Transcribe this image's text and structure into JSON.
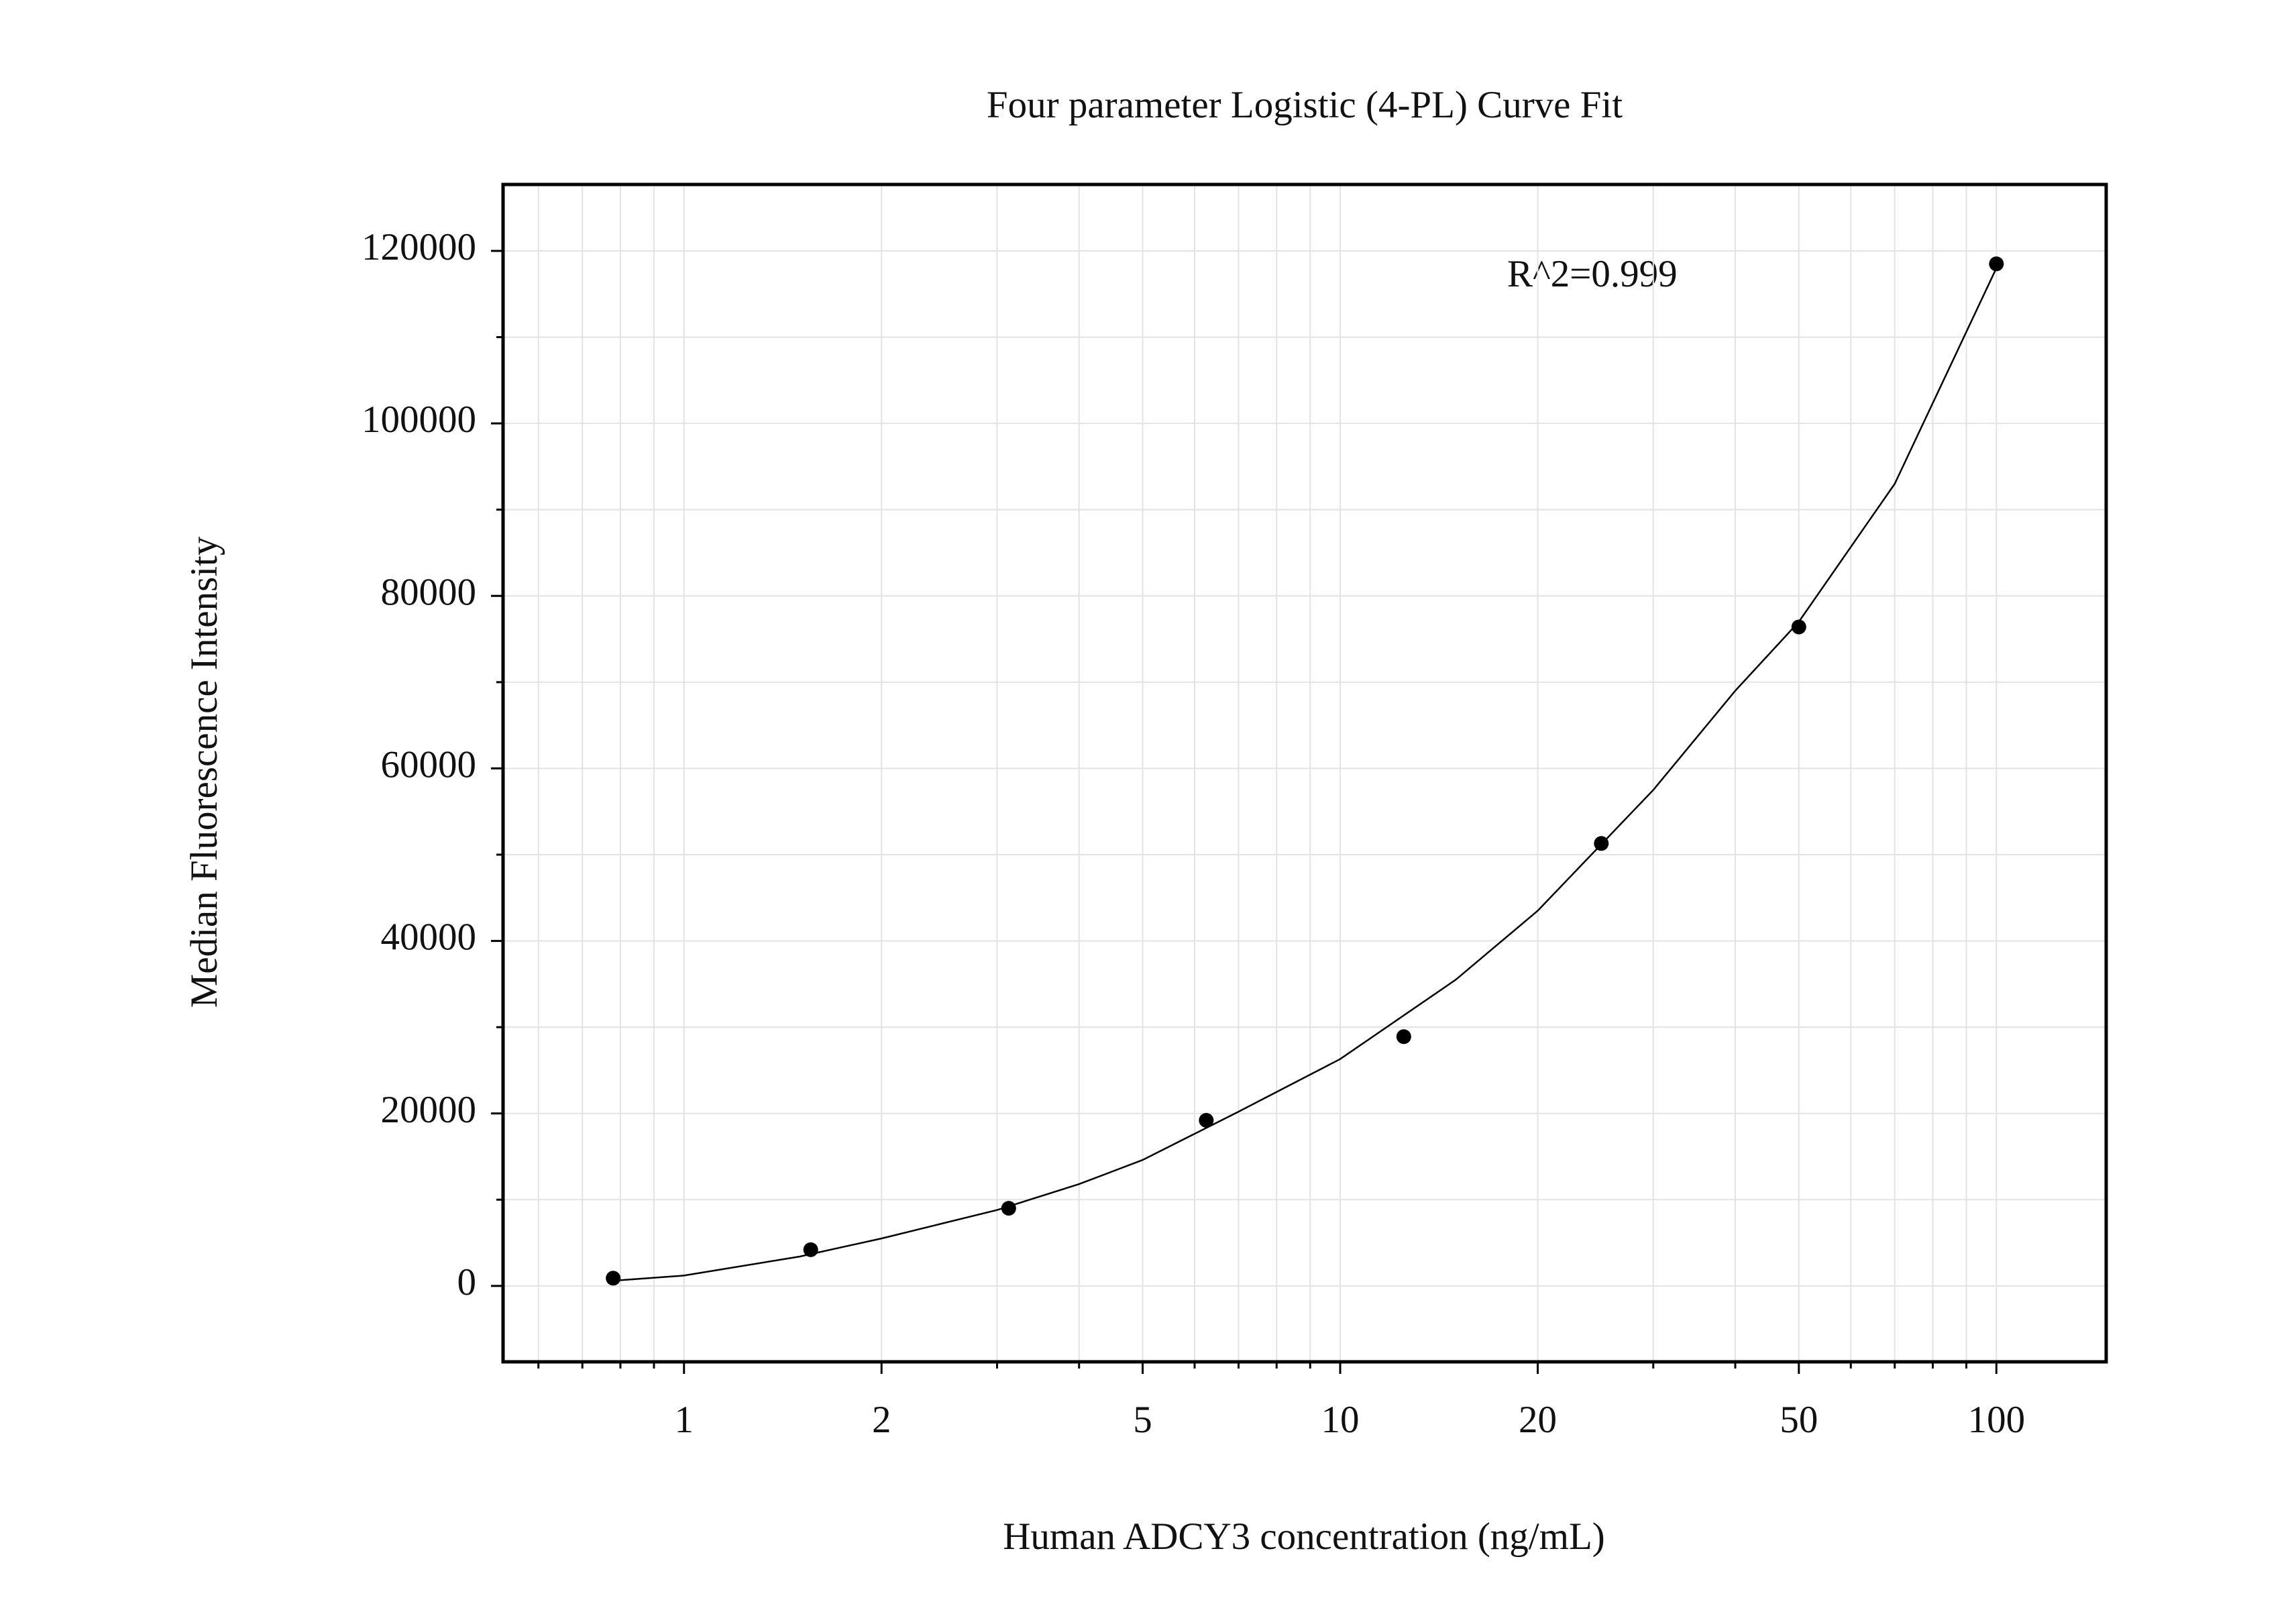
{
  "chart_data": {
    "type": "scatter",
    "title": "Four parameter Logistic (4-PL) Curve Fit",
    "x_label": "Human ADCY3 concentration (ng/mL)",
    "y_label": "Median Fluorescence Intensity",
    "annotation": "R^2=0.999",
    "x_scale": "log",
    "series": [
      {
        "color": "#000000",
        "x": [
          0.78,
          1.56,
          3.125,
          6.25,
          12.5,
          25,
          50,
          100
        ],
        "values": [
          900,
          4200,
          9000,
          19200,
          28900,
          51300,
          76400,
          118500
        ]
      }
    ],
    "fit": {
      "color": "#000000",
      "x": [
        0.78,
        1,
        1.5,
        2,
        3,
        4,
        5,
        7,
        10,
        15,
        20,
        30,
        40,
        50,
        70,
        100
      ],
      "values": [
        600,
        1200,
        3400,
        5500,
        8800,
        11800,
        14600,
        20200,
        26300,
        35500,
        43500,
        57500,
        69000,
        77000,
        93000,
        118000
      ]
    },
    "xlim": [
      0.53,
      147
    ],
    "xticks": [
      1,
      2,
      5,
      10,
      20,
      50,
      100
    ],
    "xminorticks": [
      0.6,
      0.7,
      0.8,
      0.9,
      3,
      4,
      6,
      7,
      8,
      9,
      30,
      40,
      60,
      70,
      80,
      90
    ],
    "ylim": [
      -8800,
      127700
    ],
    "yticks": [
      0,
      20000,
      40000,
      60000,
      80000,
      100000,
      120000
    ],
    "yminorticks": [
      10000,
      30000,
      50000,
      70000,
      90000,
      110000
    ],
    "grid": true
  }
}
